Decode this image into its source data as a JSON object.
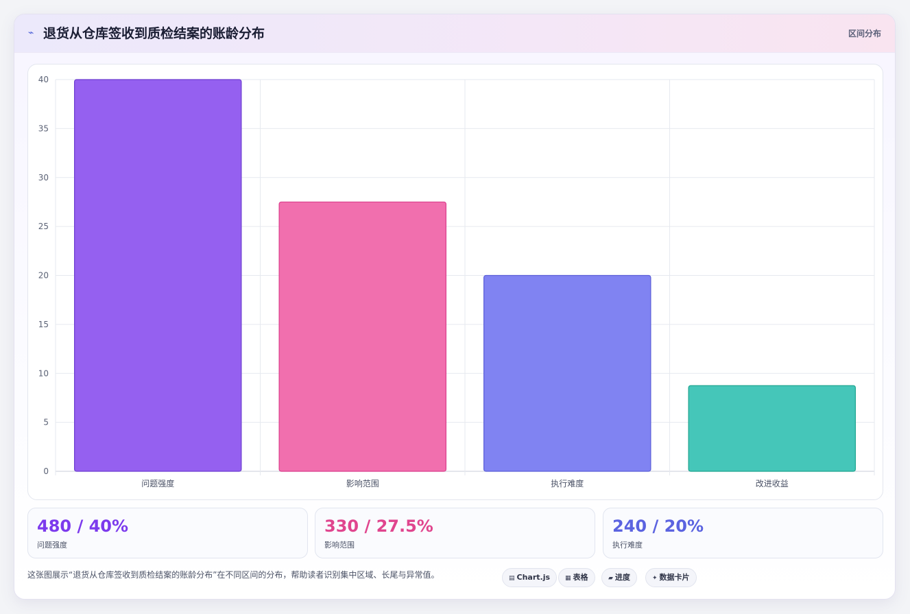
{
  "header": {
    "title": "退货从仓库签收到质检结案的账龄分布",
    "tag": "区间分布",
    "icon": "lightning-icon"
  },
  "chart_data": {
    "type": "bar",
    "categories": [
      "问题强度",
      "影响范围",
      "执行难度",
      "改进收益"
    ],
    "values": [
      40,
      27.5,
      20,
      8.75
    ],
    "ylim": [
      0,
      40
    ],
    "yticks": [
      0,
      5,
      10,
      15,
      20,
      25,
      30,
      35,
      40
    ],
    "grid": true,
    "colors": [
      "#9560f0",
      "#f16fae",
      "#8083f2",
      "#45c6b9"
    ],
    "borders": [
      "#6d3fd0",
      "#db3f8d",
      "#5b5fd8",
      "#1fa58f"
    ]
  },
  "stats": [
    {
      "value": "480 / 40%",
      "label": "问题强度",
      "color": "#7c3aed"
    },
    {
      "value": "330 / 27.5%",
      "label": "影响范围",
      "color": "#e0458e"
    },
    {
      "value": "240 / 20%",
      "label": "执行难度",
      "color": "#5b63e0"
    }
  ],
  "footer": {
    "text": "这张图展示“退货从仓库签收到质检结案的账龄分布”在不同区间的分布，帮助读者识别集中区域、长尾与异常值。",
    "chips": [
      {
        "icon": "chart-icon",
        "glyph": "▤",
        "label": "Chart.js"
      },
      {
        "icon": "table-icon",
        "glyph": "▦",
        "label": "表格"
      },
      {
        "icon": "progress-icon",
        "glyph": "▰",
        "label": "进度"
      },
      {
        "icon": "sparkle-icon",
        "glyph": "✦",
        "label": "数据卡片"
      }
    ]
  }
}
